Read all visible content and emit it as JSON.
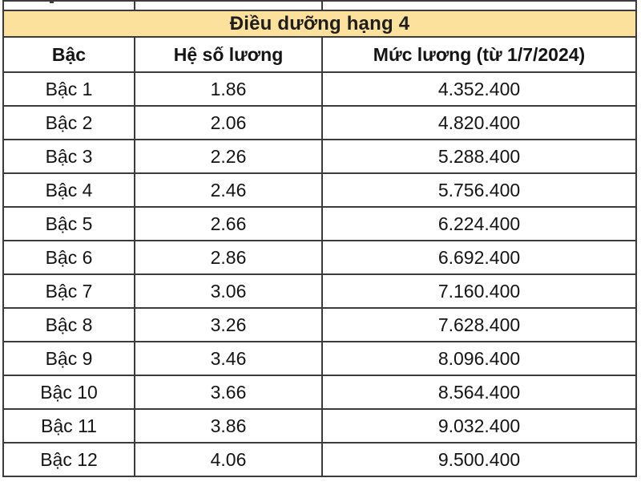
{
  "colors": {
    "page_bg": "#FFFFFF",
    "title_band_bg": "#FBE19C",
    "grid_border": "#3B3B3B",
    "text": "#141414"
  },
  "chart_data": {
    "type": "table",
    "title": "Điều dưỡng hạng 4",
    "columns": [
      "Bậc",
      "Hệ số lương",
      "Mức lương (từ 1/7/2024)"
    ],
    "rows": [
      [
        "Bậc 1",
        "1.86",
        "4.352.400"
      ],
      [
        "Bậc 2",
        "2.06",
        "4.820.400"
      ],
      [
        "Bậc 3",
        "2.26",
        "5.288.400"
      ],
      [
        "Bậc 4",
        "2.46",
        "5.756.400"
      ],
      [
        "Bậc 5",
        "2.66",
        "6.224.400"
      ],
      [
        "Bậc 6",
        "2.86",
        "6.692.400"
      ],
      [
        "Bậc 7",
        "3.06",
        "7.160.400"
      ],
      [
        "Bậc 8",
        "3.26",
        "7.628.400"
      ],
      [
        "Bậc 9",
        "3.46",
        "8.096.400"
      ],
      [
        "Bậc 10",
        "3.66",
        "8.564.400"
      ],
      [
        "Bậc 11",
        "3.86",
        "9.032.400"
      ],
      [
        "Bậc 12",
        "4.06",
        "9.500.400"
      ]
    ]
  }
}
